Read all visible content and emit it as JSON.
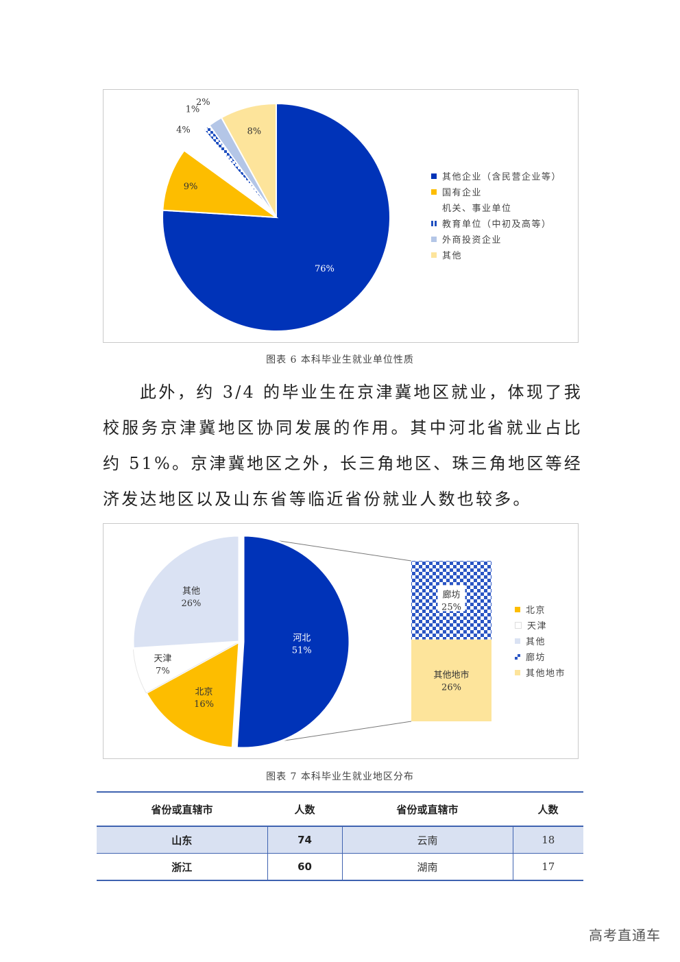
{
  "chart_data": [
    {
      "type": "pie",
      "slices": [
        {
          "name": "其他企业（含民营企业等）",
          "value": 76,
          "label": "76%",
          "color": "#0033b8"
        },
        {
          "name": "国有企业",
          "value": 9,
          "label": "9%",
          "color": "#fdbd00"
        },
        {
          "name": "机关、事业单位",
          "value": 4,
          "label": "4%",
          "color": "#ffffff"
        },
        {
          "name": "教育单位（中初及高等）",
          "value": 1,
          "label": "1%",
          "color": "#1f4fc0",
          "pattern": "checker"
        },
        {
          "name": "外商投资企业",
          "value": 2,
          "label": "2%",
          "color": "#b4c6e7"
        },
        {
          "name": "其他",
          "value": 8,
          "label": "8%",
          "color": "#fde49b"
        }
      ],
      "legend_position": "right"
    },
    {
      "type": "bar-of-pie",
      "slices": [
        {
          "name": "河北",
          "value": 51,
          "label": "51%",
          "color": "#0033b8"
        },
        {
          "name": "北京",
          "value": 16,
          "label": "16%",
          "color": "#fdbd00"
        },
        {
          "name": "天津",
          "value": 7,
          "label": "7%",
          "color": "#ffffff"
        },
        {
          "name": "其他",
          "value": 26,
          "label": "26%",
          "color": "#dae2f3"
        }
      ],
      "bar": [
        {
          "name": "廊坊",
          "value": 25,
          "label": "25%",
          "color": "#1f4fc0",
          "pattern": "checker"
        },
        {
          "name": "其他地市",
          "value": 26,
          "label": "26%",
          "color": "#fde49b"
        }
      ],
      "legend": [
        "北京",
        "天津",
        "其他",
        "廊坊",
        "其他地市"
      ],
      "legend_position": "right"
    }
  ],
  "captions": {
    "fig6": "图表 6  本科毕业生就业单位性质",
    "fig7": "图表 7  本科毕业生就业地区分布"
  },
  "paragraph": "此外，约 3/4 的毕业生在京津冀地区就业，体现了我校服务京津冀地区协同发展的作用。其中河北省就业占比约 51%。京津冀地区之外，长三角地区、珠三角地区等经济发达地区以及山东省等临近省份就业人数也较多。",
  "table": {
    "headers": [
      "省份或直辖市",
      "人数",
      "省份或直辖市",
      "人数"
    ],
    "rows": [
      [
        "山东",
        "74",
        "云南",
        "18"
      ],
      [
        "浙江",
        "60",
        "湖南",
        "17"
      ]
    ]
  },
  "watermark": "高考直通车"
}
